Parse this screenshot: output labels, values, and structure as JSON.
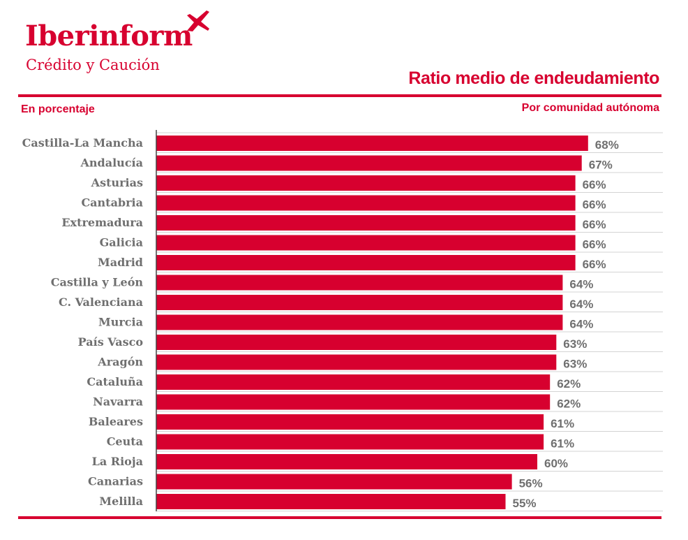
{
  "brand": {
    "name": "Iberinform",
    "tagline": "Crédito y Caución"
  },
  "colors": {
    "accent": "#d7002f",
    "label": "#6f6f6f",
    "grid": "#d3d3d3",
    "axis": "#444444"
  },
  "icons": {
    "logo": "swift-bird-icon"
  },
  "chart_data": {
    "type": "bar",
    "orientation": "horizontal",
    "title": "Ratio medio de endeudamiento",
    "subtitle": "Por comunidad autónoma",
    "unit_label": "En porcentaje",
    "xlim": [
      0,
      80
    ],
    "grid": true,
    "categories": [
      "Castilla-La Mancha",
      "Andalucía",
      "Asturias",
      "Cantabria",
      "Extremadura",
      "Galicia",
      "Madrid",
      "Castilla y León",
      "C. Valenciana",
      "Murcia",
      "País Vasco",
      "Aragón",
      "Cataluña",
      "Navarra",
      "Baleares",
      "Ceuta",
      "La Rioja",
      "Canarias",
      "Melilla"
    ],
    "values": [
      68,
      67,
      66,
      66,
      66,
      66,
      66,
      64,
      64,
      64,
      63,
      63,
      62,
      62,
      61,
      61,
      60,
      56,
      55
    ],
    "data_labels": [
      "68%",
      "67%",
      "66%",
      "66%",
      "66%",
      "66%",
      "66%",
      "64%",
      "64%",
      "64%",
      "63%",
      "63%",
      "62%",
      "62%",
      "61%",
      "61%",
      "60%",
      "56%",
      "55%"
    ]
  }
}
